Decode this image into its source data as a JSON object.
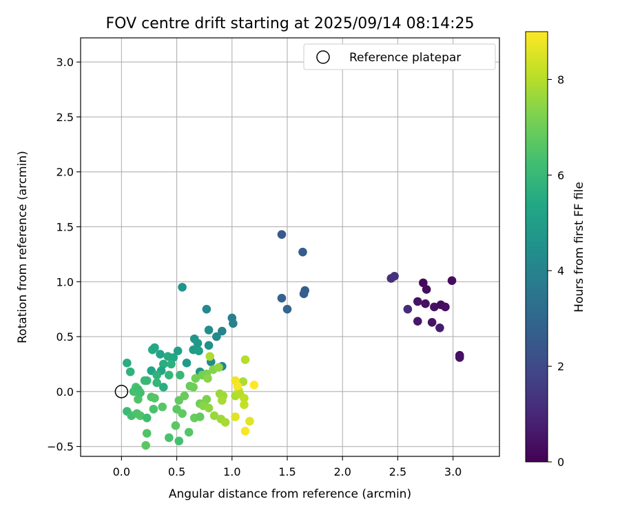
{
  "chart_data": {
    "type": "scatter",
    "title": "FOV centre drift starting at 2025/09/14 08:14:25",
    "xlabel": "Angular distance from reference (arcmin)",
    "ylabel": "Rotation from reference (arcmin)",
    "xlim": [
      -0.37,
      3.42
    ],
    "ylim": [
      -0.59,
      3.22
    ],
    "xticks": [
      "0.0",
      "0.5",
      "1.0",
      "1.5",
      "2.0",
      "2.5",
      "3.0"
    ],
    "yticks": [
      "−0.5",
      "0.0",
      "0.5",
      "1.0",
      "1.5",
      "2.0",
      "2.5",
      "3.0"
    ],
    "grid": true,
    "legend": {
      "placement": "top-right",
      "entries": [
        "Reference platepar"
      ]
    },
    "reference_point": {
      "x": 0.0,
      "y": 0.0,
      "label": "Reference platepar"
    },
    "colorbar": {
      "label": "Hours from first FF file",
      "min": 0,
      "max": 9.0,
      "ticks": [
        "0",
        "2",
        "4",
        "6",
        "8"
      ],
      "colormap": "viridis"
    },
    "points": [
      [
        2.73,
        0.99,
        0.2
      ],
      [
        2.76,
        0.93,
        0.3
      ],
      [
        2.75,
        0.8,
        0.35
      ],
      [
        2.99,
        1.01,
        0.25
      ],
      [
        2.68,
        0.82,
        0.5
      ],
      [
        2.83,
        0.77,
        0.4
      ],
      [
        2.89,
        0.79,
        0.3
      ],
      [
        2.93,
        0.77,
        0.35
      ],
      [
        2.81,
        0.63,
        0.5
      ],
      [
        2.68,
        0.64,
        0.6
      ],
      [
        2.88,
        0.58,
        0.7
      ],
      [
        3.06,
        0.33,
        0.3
      ],
      [
        3.06,
        0.31,
        0.4
      ],
      [
        2.59,
        0.75,
        1.1
      ],
      [
        2.44,
        1.03,
        1.2
      ],
      [
        2.47,
        1.05,
        1.3
      ],
      [
        1.45,
        1.43,
        2.5
      ],
      [
        1.64,
        1.27,
        2.6
      ],
      [
        1.66,
        0.92,
        2.6
      ],
      [
        1.65,
        0.89,
        2.7
      ],
      [
        1.45,
        0.85,
        2.8
      ],
      [
        1.5,
        0.75,
        2.9
      ],
      [
        0.55,
        0.95,
        4.6
      ],
      [
        0.77,
        0.75,
        4.2
      ],
      [
        1.0,
        0.67,
        3.9
      ],
      [
        1.01,
        0.62,
        3.95
      ],
      [
        0.91,
        0.55,
        4.0
      ],
      [
        0.79,
        0.56,
        4.4
      ],
      [
        0.86,
        0.5,
        4.3
      ],
      [
        0.66,
        0.48,
        4.7
      ],
      [
        0.69,
        0.44,
        4.8
      ],
      [
        0.79,
        0.42,
        4.5
      ],
      [
        0.91,
        0.23,
        4.1
      ],
      [
        0.81,
        0.27,
        4.3
      ],
      [
        0.65,
        0.38,
        4.9
      ],
      [
        0.7,
        0.37,
        5.0
      ],
      [
        0.51,
        0.37,
        5.1
      ],
      [
        0.59,
        0.26,
        4.9
      ],
      [
        0.71,
        0.18,
        4.6
      ],
      [
        0.28,
        0.38,
        5.5
      ],
      [
        0.3,
        0.4,
        5.4
      ],
      [
        0.35,
        0.34,
        5.2
      ],
      [
        0.42,
        0.32,
        5.5
      ],
      [
        0.47,
        0.31,
        5.4
      ],
      [
        0.38,
        0.25,
        5.6
      ],
      [
        0.45,
        0.25,
        5.7
      ],
      [
        0.27,
        0.19,
        5.3
      ],
      [
        0.36,
        0.19,
        5.3
      ],
      [
        0.32,
        0.15,
        5.8
      ],
      [
        0.43,
        0.15,
        5.9
      ],
      [
        0.53,
        0.15,
        6.0
      ],
      [
        0.32,
        0.08,
        5.9
      ],
      [
        0.38,
        0.04,
        5.6
      ],
      [
        0.23,
        0.1,
        6.1
      ],
      [
        0.21,
        0.1,
        6.0
      ],
      [
        0.05,
        0.26,
        5.6
      ],
      [
        0.08,
        0.18,
        5.8
      ],
      [
        0.11,
        0.0,
        6.3
      ],
      [
        0.13,
        0.04,
        6.4
      ],
      [
        0.15,
        0.02,
        6.2
      ],
      [
        0.16,
        -0.02,
        6.4
      ],
      [
        0.15,
        -0.07,
        6.5
      ],
      [
        0.17,
        -0.01,
        6.3
      ],
      [
        0.05,
        -0.18,
        6.1
      ],
      [
        0.09,
        -0.22,
        6.3
      ],
      [
        0.14,
        -0.2,
        6.4
      ],
      [
        0.17,
        -0.22,
        6.5
      ],
      [
        0.23,
        -0.24,
        6.2
      ],
      [
        0.27,
        -0.05,
        6.5
      ],
      [
        0.3,
        -0.06,
        6.6
      ],
      [
        0.29,
        -0.16,
        6.4
      ],
      [
        0.37,
        -0.14,
        6.6
      ],
      [
        0.23,
        -0.38,
        6.5
      ],
      [
        0.22,
        -0.49,
        6.7
      ],
      [
        0.43,
        -0.42,
        6.4
      ],
      [
        0.52,
        -0.45,
        6.3
      ],
      [
        0.5,
        -0.16,
        6.7
      ],
      [
        0.55,
        -0.2,
        6.8
      ],
      [
        0.52,
        -0.08,
        6.8
      ],
      [
        0.57,
        -0.04,
        6.9
      ],
      [
        0.49,
        -0.31,
        6.7
      ],
      [
        0.61,
        -0.37,
        6.6
      ],
      [
        0.66,
        -0.24,
        6.9
      ],
      [
        0.71,
        -0.23,
        6.8
      ],
      [
        0.71,
        -0.11,
        7.0
      ],
      [
        0.62,
        0.05,
        6.9
      ],
      [
        0.65,
        0.04,
        7.0
      ],
      [
        0.67,
        0.12,
        7.1
      ],
      [
        0.73,
        0.15,
        7.1
      ],
      [
        0.77,
        0.16,
        7.2
      ],
      [
        0.78,
        0.12,
        7.4
      ],
      [
        0.83,
        0.2,
        7.3
      ],
      [
        0.8,
        0.32,
        7.9
      ],
      [
        0.88,
        0.22,
        7.5
      ],
      [
        0.75,
        -0.12,
        7.3
      ],
      [
        0.77,
        -0.07,
        7.2
      ],
      [
        0.74,
        -0.13,
        7.4
      ],
      [
        0.79,
        -0.15,
        7.5
      ],
      [
        0.84,
        -0.22,
        7.6
      ],
      [
        0.9,
        -0.25,
        7.7
      ],
      [
        0.94,
        -0.28,
        7.8
      ],
      [
        0.89,
        -0.02,
        7.6
      ],
      [
        0.92,
        -0.04,
        7.7
      ],
      [
        0.91,
        -0.08,
        7.8
      ],
      [
        1.03,
        -0.04,
        7.9
      ],
      [
        1.06,
        0.01,
        8.3
      ],
      [
        1.07,
        -0.02,
        8.0
      ],
      [
        1.1,
        0.09,
        7.9
      ],
      [
        1.11,
        -0.06,
        8.1
      ],
      [
        1.11,
        -0.12,
        8.2
      ],
      [
        1.12,
        0.29,
        8.0
      ],
      [
        1.03,
        0.1,
        8.8
      ],
      [
        1.05,
        0.05,
        8.9
      ],
      [
        1.2,
        0.06,
        9.0
      ],
      [
        1.16,
        -0.27,
        8.6
      ],
      [
        1.03,
        -0.23,
        8.6
      ],
      [
        1.12,
        -0.36,
        8.9
      ]
    ]
  }
}
